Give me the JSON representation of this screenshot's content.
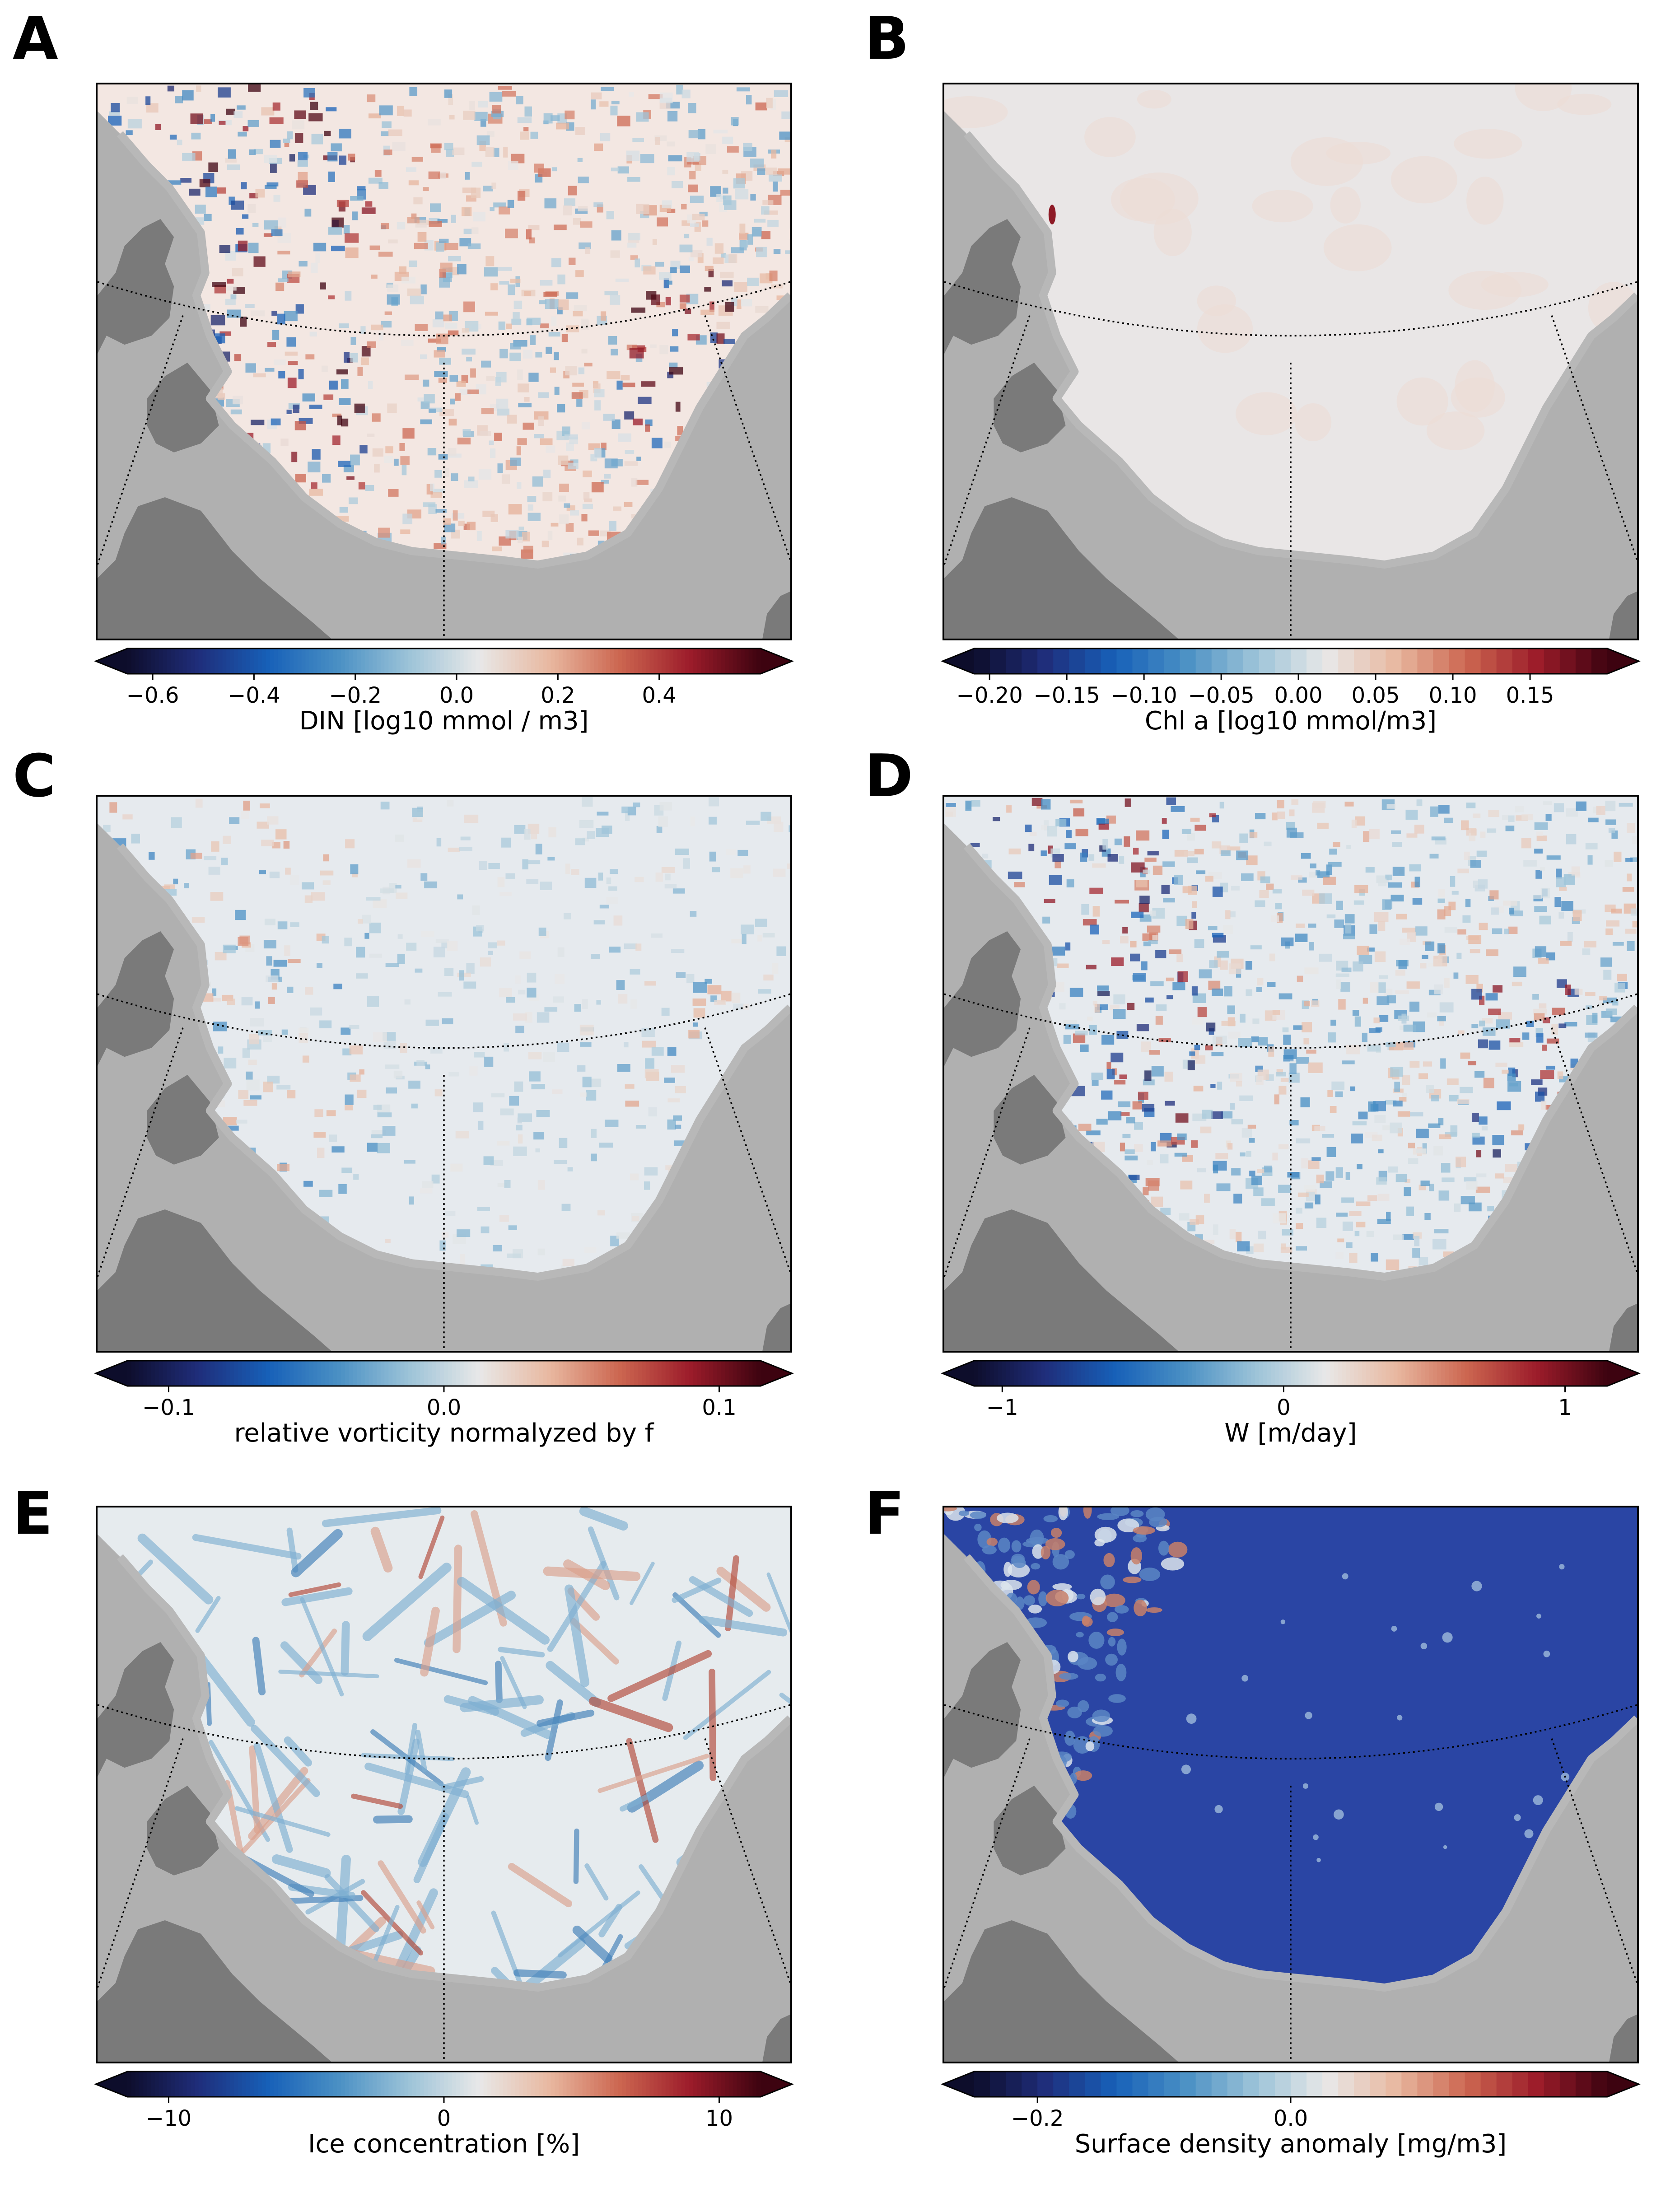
{
  "panels": [
    {
      "letter": "A",
      "cbar_label": "DIN [log10 mmol / m3]",
      "ticks": [
        "−0.6",
        "−0.4",
        "−0.2",
        "0.0",
        "0.2",
        "0.4"
      ],
      "tick_values": [
        -0.6,
        -0.4,
        -0.2,
        0.0,
        0.2,
        0.4
      ],
      "range": [
        -0.65,
        0.6
      ],
      "discrete": false,
      "field": "din"
    },
    {
      "letter": "B",
      "cbar_label": "Chl a [log10 mmol/m3]",
      "ticks": [
        "−0.20",
        "−0.15",
        "−0.10",
        "−0.05",
        "0.00",
        "0.05",
        "0.10",
        "0.15"
      ],
      "tick_values": [
        -0.2,
        -0.15,
        -0.1,
        -0.05,
        0.0,
        0.05,
        0.1,
        0.15
      ],
      "range": [
        -0.21,
        0.2
      ],
      "discrete": true,
      "field": "chl"
    },
    {
      "letter": "C",
      "cbar_label": "relative vorticity normalyzed by f",
      "ticks": [
        "−0.1",
        "0.0",
        "0.1"
      ],
      "tick_values": [
        -0.1,
        0.0,
        0.1
      ],
      "range": [
        -0.115,
        0.115
      ],
      "discrete": false,
      "field": "vort"
    },
    {
      "letter": "D",
      "cbar_label": "W [m/day]",
      "ticks": [
        "−1",
        "0",
        "1"
      ],
      "tick_values": [
        -1,
        0,
        1
      ],
      "range": [
        -1.1,
        1.15
      ],
      "discrete": false,
      "field": "w"
    },
    {
      "letter": "E",
      "cbar_label": "Ice concentration [%]",
      "ticks": [
        "−10",
        "0",
        "10"
      ],
      "tick_values": [
        -10,
        0,
        10
      ],
      "range": [
        -11.5,
        11.5
      ],
      "discrete": false,
      "field": "ice"
    },
    {
      "letter": "F",
      "cbar_label": "Surface density anomaly [mg/m3]",
      "ticks": [
        "−0.2",
        "0.0"
      ],
      "tick_values": [
        -0.2,
        0.0
      ],
      "range": [
        -0.25,
        0.25
      ],
      "discrete": true,
      "field": "dens"
    }
  ],
  "colors": {
    "land_light": "#b0b0b0",
    "land_dark": "#7a7a7a",
    "coast": "#b8b8b8",
    "colormap": [
      "#0d0d2b",
      "#1f2d7a",
      "#1760b8",
      "#4a90c4",
      "#9cc3d8",
      "#e8e8e8",
      "#e8b8a0",
      "#cc6650",
      "#9c1c2a",
      "#3d0310"
    ]
  },
  "chart_data": [
    {
      "type": "heatmap",
      "title": "A",
      "colorbar_label": "DIN [log10 mmol / m3]",
      "colorbar_ticks": [
        -0.6,
        -0.4,
        -0.2,
        0.0,
        0.2,
        0.4
      ],
      "colormap": "diverging blue-red"
    },
    {
      "type": "heatmap",
      "title": "B",
      "colorbar_label": "Chl a [log10 mmol/m3]",
      "colorbar_ticks": [
        -0.2,
        -0.15,
        -0.1,
        -0.05,
        0.0,
        0.05,
        0.1,
        0.15
      ],
      "colormap": "diverging blue-red (discrete)"
    },
    {
      "type": "heatmap",
      "title": "C",
      "colorbar_label": "relative vorticity normalyzed by f",
      "colorbar_ticks": [
        -0.1,
        0.0,
        0.1
      ],
      "colormap": "diverging blue-red"
    },
    {
      "type": "heatmap",
      "title": "D",
      "colorbar_label": "W [m/day]",
      "colorbar_ticks": [
        -1,
        0,
        1
      ],
      "colormap": "diverging blue-red"
    },
    {
      "type": "heatmap",
      "title": "E",
      "colorbar_label": "Ice concentration [%]",
      "colorbar_ticks": [
        -10,
        0,
        10
      ],
      "colormap": "diverging blue-red"
    },
    {
      "type": "heatmap",
      "title": "F",
      "colorbar_label": "Surface density anomaly [mg/m3]",
      "colorbar_ticks": [
        -0.2,
        0.0
      ],
      "colormap": "diverging blue-red (discrete)"
    }
  ]
}
